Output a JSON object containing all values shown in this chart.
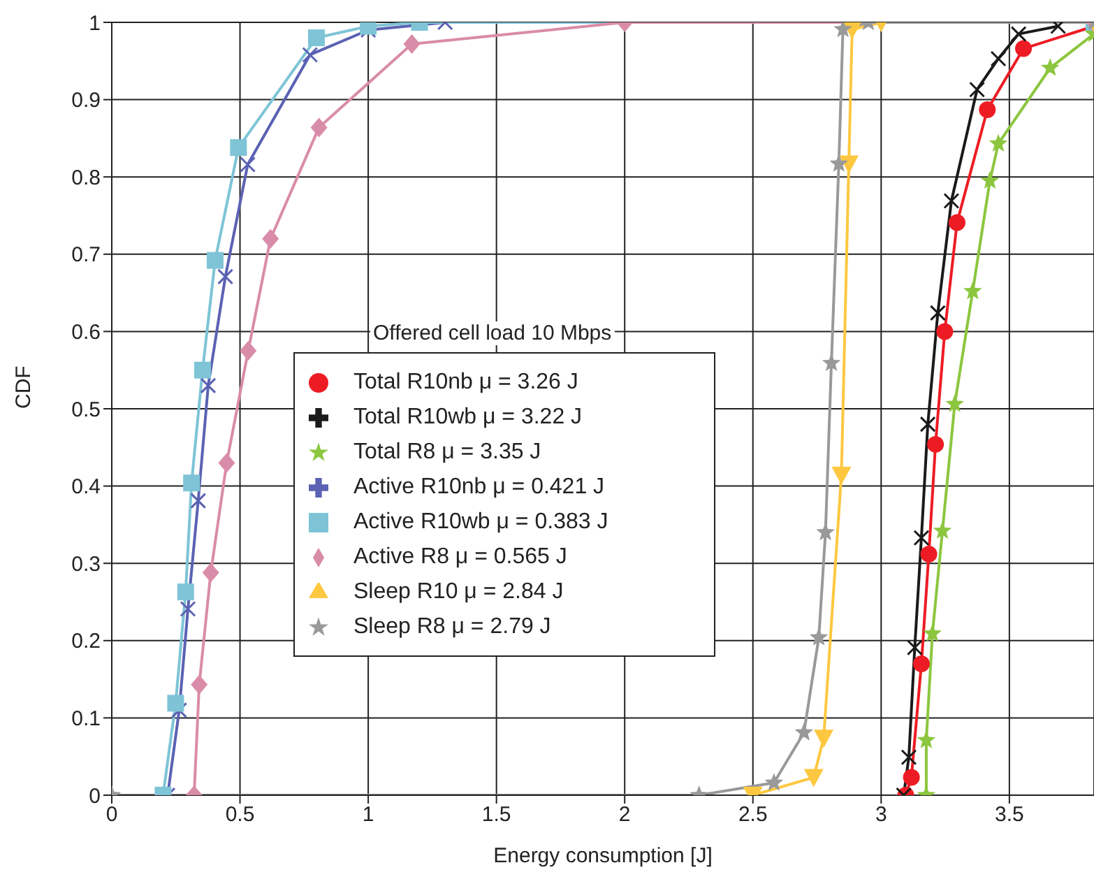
{
  "chart_data": {
    "type": "line",
    "xlabel": "Energy consumption [J]",
    "ylabel": "CDF",
    "annotations": [
      "Offered cell load 10 Mbps"
    ],
    "xlim": [
      0,
      3.83
    ],
    "ylim": [
      0,
      1
    ],
    "xticks": [
      0,
      0.5,
      1,
      1.5,
      2,
      2.5,
      3,
      3.5
    ],
    "yticks": [
      0,
      0.1,
      0.2,
      0.3,
      0.4,
      0.5,
      0.6,
      0.7,
      0.8,
      0.9,
      1
    ],
    "grid": true,
    "legend": "center",
    "line_style": "solid",
    "series": [
      {
        "name": "Total R10nb μ = 3.26 J",
        "color": "#ed1c24",
        "marker": "circle",
        "x": [
          3.096,
          3.118,
          3.157,
          3.186,
          3.212,
          3.248,
          3.296,
          3.414,
          3.555,
          3.83
        ],
        "values": [
          0,
          0.023,
          0.17,
          0.312,
          0.454,
          0.6,
          0.741,
          0.887,
          0.966,
          0.995
        ]
      },
      {
        "name": "Total R10wb μ = 3.22 J",
        "color": "#1a1a1a",
        "marker": "cross",
        "x": [
          3.088,
          3.108,
          3.131,
          3.157,
          3.182,
          3.221,
          3.274,
          3.374,
          3.457,
          3.536,
          3.69
        ],
        "values": [
          0,
          0.049,
          0.191,
          0.333,
          0.48,
          0.624,
          0.769,
          0.913,
          0.953,
          0.985,
          0.995
        ]
      },
      {
        "name": "Total R8 μ = 3.35 J",
        "color": "#8cc63f",
        "marker": "star",
        "x": [
          3.176,
          3.176,
          3.2,
          3.239,
          3.287,
          3.357,
          3.424,
          3.457,
          3.659,
          3.83
        ],
        "values": [
          0,
          0.071,
          0.209,
          0.342,
          0.506,
          0.652,
          0.795,
          0.843,
          0.941,
          0.985
        ]
      },
      {
        "name": "Active R10nb μ = 0.421 J",
        "color": "#5b62b3",
        "marker": "cross",
        "x": [
          0.218,
          0.263,
          0.297,
          0.337,
          0.376,
          0.443,
          0.53,
          0.773,
          1.0,
          1.3,
          3.83
        ],
        "values": [
          0,
          0.11,
          0.241,
          0.381,
          0.53,
          0.671,
          0.816,
          0.958,
          0.99,
          1,
          1
        ]
      },
      {
        "name": "Active R10wb μ = 0.383 J",
        "color": "#7ec4d6",
        "marker": "square",
        "x": [
          0.2,
          0.249,
          0.288,
          0.311,
          0.354,
          0.403,
          0.494,
          0.798,
          1.0,
          1.2,
          3.83
        ],
        "values": [
          0,
          0.119,
          0.263,
          0.404,
          0.55,
          0.692,
          0.838,
          0.98,
          0.995,
          1,
          1
        ]
      },
      {
        "name": "Active R8 μ = 0.565 J",
        "color": "#d98ca8",
        "marker": "diamond",
        "x": [
          0.321,
          0.341,
          0.386,
          0.448,
          0.532,
          0.619,
          0.808,
          1.17,
          2.0,
          3.83
        ],
        "values": [
          0,
          0.143,
          0.288,
          0.43,
          0.575,
          0.72,
          0.864,
          0.972,
          1,
          1
        ]
      },
      {
        "name": "Sleep R10 μ = 2.84 J",
        "color": "#fdc840",
        "marker": "triangle",
        "x": [
          2.5,
          2.737,
          2.776,
          2.845,
          2.874,
          2.887,
          3.0,
          3.83
        ],
        "values": [
          0,
          0.023,
          0.074,
          0.414,
          0.817,
          0.991,
          1,
          1
        ]
      },
      {
        "name": "Sleep R8 μ = 2.79 J",
        "color": "#999999",
        "marker": "star",
        "x": [
          0,
          2.29,
          2.582,
          2.699,
          2.757,
          2.783,
          2.806,
          2.835,
          2.851,
          2.95,
          3.83
        ],
        "values": [
          0,
          0,
          0.016,
          0.081,
          0.204,
          0.34,
          0.559,
          0.817,
          0.991,
          1,
          1
        ]
      }
    ]
  }
}
